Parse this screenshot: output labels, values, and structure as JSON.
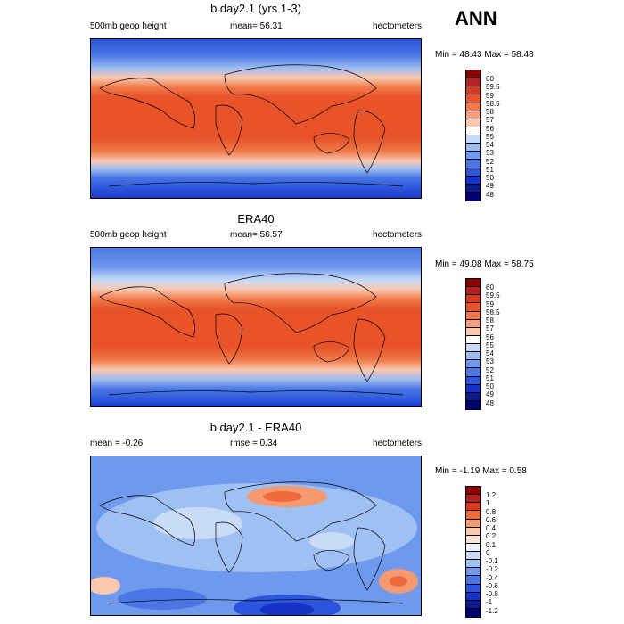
{
  "season": "ANN",
  "panels": [
    {
      "title": "b.day2.1 (yrs 1-3)",
      "left_label": "500mb geop height",
      "center_label": "mean=  56.31",
      "right_label": "hectometers",
      "minmax": "Min = 48.43 Max =  58.48",
      "colorbar": [
        "60",
        "59.5",
        "59",
        "58.5",
        "58",
        "57",
        "56",
        "55",
        "54",
        "53",
        "52",
        "51",
        "50",
        "49",
        "48"
      ]
    },
    {
      "title": "ERA40",
      "left_label": "500mb geop height",
      "center_label": "mean=  56.57",
      "right_label": "hectometers",
      "minmax": "Min = 49.08 Max =  58.75",
      "colorbar": [
        "60",
        "59.5",
        "59",
        "58.5",
        "58",
        "57",
        "56",
        "55",
        "54",
        "53",
        "52",
        "51",
        "50",
        "49",
        "48"
      ]
    },
    {
      "title": "b.day2.1 - ERA40",
      "left_label": "mean =  -0.26",
      "center_label": "rmse =   0.34",
      "right_label": "hectometers",
      "minmax": "Min =  -1.19 Max =    0.58",
      "colorbar": [
        "1.2",
        "1",
        "0.8",
        "0.6",
        "0.4",
        "0.2",
        "0.1",
        "0",
        "-0.1",
        "-0.2",
        "-0.4",
        "-0.6",
        "-0.8",
        "-1",
        "-1.2"
      ]
    }
  ],
  "colors": {
    "abs_scale": [
      "#8b0000",
      "#b22222",
      "#d93a1a",
      "#e8532a",
      "#f07a4a",
      "#f5a07a",
      "#fac8b0",
      "#ffffff",
      "#c6d9f7",
      "#9dbcf1",
      "#6f99ec",
      "#4a77e4",
      "#2a55dc",
      "#1533c4",
      "#0a1c8c",
      "#000075"
    ],
    "diff_scale": [
      "#8b0000",
      "#b22222",
      "#d93a1a",
      "#ef6a3a",
      "#f59a70",
      "#fac8b0",
      "#fbe3d6",
      "#eef4fd",
      "#c9dcf7",
      "#9fc0f2",
      "#6f99ec",
      "#4a77e4",
      "#2a55dc",
      "#1533c4",
      "#0a1c8c",
      "#000075"
    ]
  }
}
